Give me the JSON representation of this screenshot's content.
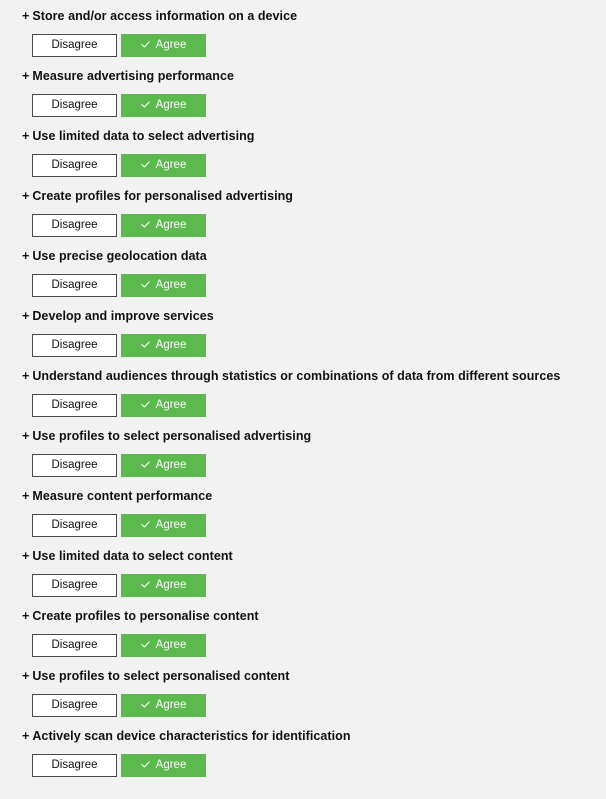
{
  "purposes": [
    {
      "heading": "Store and/or access information on a device",
      "disagree_label": "Disagree",
      "agree_label": "Agree",
      "selected": "agree"
    },
    {
      "heading": "Measure advertising performance",
      "disagree_label": "Disagree",
      "agree_label": "Agree",
      "selected": "agree"
    },
    {
      "heading": "Use limited data to select advertising",
      "disagree_label": "Disagree",
      "agree_label": "Agree",
      "selected": "agree"
    },
    {
      "heading": "Create profiles for personalised advertising",
      "disagree_label": "Disagree",
      "agree_label": "Agree",
      "selected": "agree"
    },
    {
      "heading": "Use precise geolocation data",
      "disagree_label": "Disagree",
      "agree_label": "Agree",
      "selected": "agree"
    },
    {
      "heading": "Develop and improve services",
      "disagree_label": "Disagree",
      "agree_label": "Agree",
      "selected": "agree"
    },
    {
      "heading": "Understand audiences through statistics or combinations of data from different sources",
      "disagree_label": "Disagree",
      "agree_label": "Agree",
      "selected": "agree"
    },
    {
      "heading": "Use profiles to select personalised advertising",
      "disagree_label": "Disagree",
      "agree_label": "Agree",
      "selected": "agree"
    },
    {
      "heading": "Measure content performance",
      "disagree_label": "Disagree",
      "agree_label": "Agree",
      "selected": "agree"
    },
    {
      "heading": "Use limited data to select content",
      "disagree_label": "Disagree",
      "agree_label": "Agree",
      "selected": "agree"
    },
    {
      "heading": "Create profiles to personalise content",
      "disagree_label": "Disagree",
      "agree_label": "Agree",
      "selected": "agree"
    },
    {
      "heading": "Use profiles to select personalised content",
      "disagree_label": "Disagree",
      "agree_label": "Agree",
      "selected": "agree"
    },
    {
      "heading": "Actively scan device characteristics for identification",
      "disagree_label": "Disagree",
      "agree_label": "Agree",
      "selected": "agree"
    }
  ],
  "expand_symbol": "+",
  "colors": {
    "background": "#f2f2f2",
    "agree_fill": "#5bb94d",
    "agree_text": "#ffffff",
    "disagree_fill": "#ffffff",
    "disagree_border": "#4a4a4a"
  },
  "icons": {
    "agree_button": "check-icon"
  }
}
